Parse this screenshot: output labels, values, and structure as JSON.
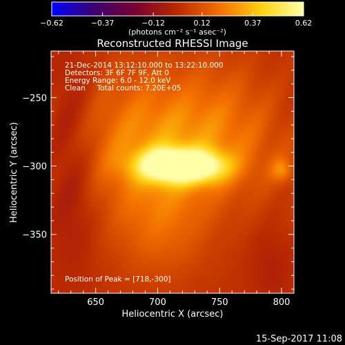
{
  "chart_data": {
    "type": "heatmap",
    "title": "Reconstructed RHESSI Image",
    "xlabel": "Heliocentric X (arcsec)",
    "ylabel": "Heliocentric Y (arcsec)",
    "xlim": [
      614,
      810
    ],
    "ylim": [
      -393,
      -216
    ],
    "x_ticks": [
      650,
      700,
      750,
      800
    ],
    "y_ticks": [
      -250,
      -300,
      -350
    ],
    "x_tick_labels": [
      "650",
      "700",
      "750",
      "800"
    ],
    "y_tick_labels": [
      "−250",
      "−300",
      "−350"
    ],
    "colorbar": {
      "min": -0.62,
      "max": 0.62,
      "tick_values": [
        -0.62,
        -0.37,
        -0.12,
        0.12,
        0.37,
        0.62
      ],
      "tick_labels": [
        "−0.62",
        "−0.37",
        "−0.12",
        "0.12",
        "0.37",
        "0.62"
      ],
      "units": "(photons cm⁻² s⁻¹ asec⁻²)",
      "colormap": [
        "#0000ff",
        "#3a0072",
        "#7a0030",
        "#bb2a00",
        "#f46f00",
        "#ffd10f",
        "#ffffaa"
      ]
    },
    "annotations": [
      "21-Dec-2014 13:12:10.000 to 13:22:10.000",
      "Detectors: 3F 6F 7F 9F, Att 0",
      "Energy Range: 6.0 - 12.0 keV",
      "Clean     Total counts: 7.20E+05",
      "Position of Peak = [718,-300]"
    ],
    "peak": {
      "x": 718,
      "y": -300,
      "value": 0.62
    },
    "sources": [
      {
        "x": 718,
        "y": -300,
        "sx": 22,
        "sy": 8,
        "amp": 0.72
      },
      {
        "x": 703,
        "y": -296,
        "sx": 10,
        "sy": 7,
        "amp": 0.12
      },
      {
        "x": 742,
        "y": -301,
        "sx": 12,
        "sy": 8,
        "amp": 0.1
      },
      {
        "x": 714,
        "y": -292,
        "sx": 55,
        "sy": 28,
        "amp": 0.22
      },
      {
        "x": 701,
        "y": -343,
        "sx": 28,
        "sy": 28,
        "amp": 0.15
      },
      {
        "x": 690,
        "y": -256,
        "sx": 40,
        "sy": 30,
        "amp": 0.1
      },
      {
        "x": 755,
        "y": -255,
        "sx": 30,
        "sy": 28,
        "amp": 0.08
      },
      {
        "x": 800,
        "y": -303,
        "sx": 6,
        "sy": 6,
        "amp": 0.18
      }
    ],
    "dark_regions": [
      {
        "x": 630,
        "y": -292,
        "sx": 14,
        "sy": 55,
        "amp": -0.12
      },
      {
        "x": 792,
        "y": -375,
        "sx": 12,
        "sy": 20,
        "amp": -0.06
      }
    ],
    "background": 0.02,
    "grid": false
  },
  "footer": {
    "timestamp": "15-Sep-2017 11:08"
  }
}
